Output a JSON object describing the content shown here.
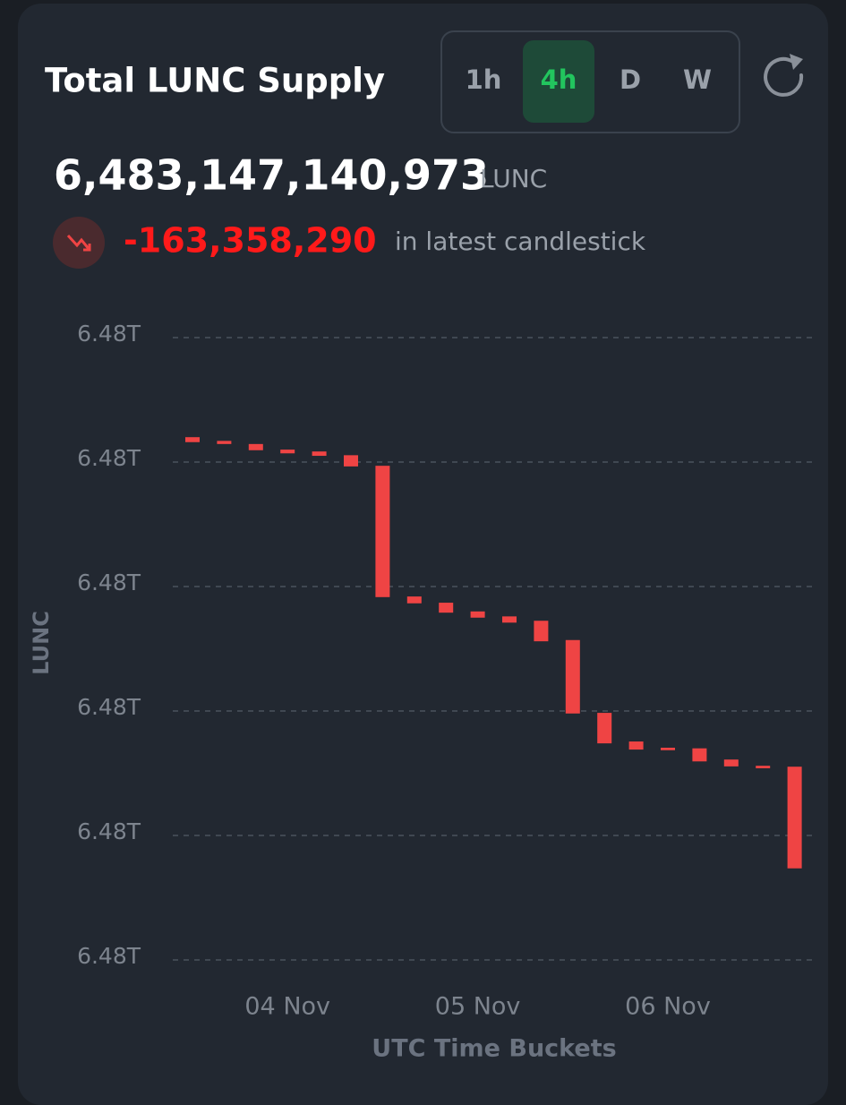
{
  "header": {
    "supply": "6,483,147,140,973",
    "unit": "LUNC",
    "change": "-163,358,290",
    "change_caption": "in latest candlestick",
    "timeframes": [
      "1h",
      "4h",
      "D",
      "W"
    ],
    "active_timeframe": 1
  },
  "chart_data": {
    "type": "candlestick",
    "title": "Total LUNC Supply",
    "y_label": "LUNC",
    "x_label": "UTC Time Buckets",
    "categories": [
      null,
      null,
      null,
      "04 Nov",
      null,
      null,
      null,
      null,
      null,
      "05 Nov",
      null,
      null,
      null,
      null,
      null,
      "06 Nov",
      null,
      null,
      null,
      null
    ],
    "open": [
      6483840000000,
      6483834000000,
      6483829000000,
      6483820000000,
      6483817000000,
      6483811000000,
      6483794000000,
      6483584000000,
      6483574000000,
      6483560000000,
      6483552000000,
      6483545000000,
      6483514000000,
      6483397000000,
      6483351000000,
      6483341000000,
      6483340000000,
      6483322000000,
      6483312000000,
      6483310499263
    ],
    "close": [
      6483832000000,
      6483829000000,
      6483819000000,
      6483814000000,
      6483810000000,
      6483793000000,
      6483583000000,
      6483573000000,
      6483558000000,
      6483550000000,
      6483542000000,
      6483512000000,
      6483396000000,
      6483348000000,
      6483338000000,
      6483337000000,
      6483319000000,
      6483311000000,
      6483308000000,
      6483147140973
    ],
    "color": "#ef4444",
    "ylim": [
      6483000000000,
      6484000000000
    ],
    "yticks": [
      {
        "value": 6483000000000,
        "label": "6.48T"
      },
      {
        "value": 6483200000000,
        "label": "6.48T"
      },
      {
        "value": 6483400000000,
        "label": "6.48T"
      },
      {
        "value": 6483600000000,
        "label": "6.48T"
      },
      {
        "value": 6483800000000,
        "label": "6.48T"
      },
      {
        "value": 6484000000000,
        "label": "6.48T"
      }
    ],
    "grid": true
  }
}
